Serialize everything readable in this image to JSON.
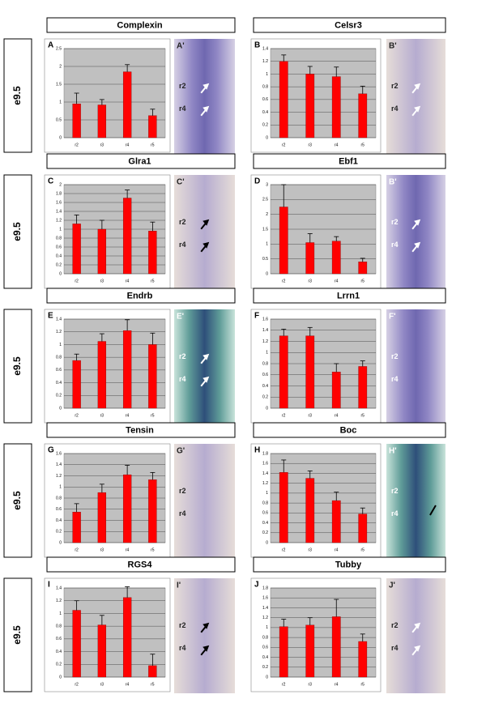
{
  "chart_data": [
    {
      "type": "bar",
      "title": "Complexin",
      "panel": "A",
      "categories": [
        "r2",
        "r3",
        "r4",
        "r5"
      ],
      "values": [
        0.95,
        0.92,
        1.85,
        0.62
      ],
      "errors": [
        0.3,
        0.15,
        0.2,
        0.18
      ],
      "color": "#ff0000",
      "ylim": [
        0,
        2.5
      ],
      "yticks": [
        0,
        0.5,
        1,
        1.5,
        2,
        2.5
      ],
      "grid": true
    },
    {
      "type": "bar",
      "title": "Celsr3",
      "panel": "B",
      "categories": [
        "r2",
        "r3",
        "r4",
        "r5"
      ],
      "values": [
        1.2,
        1.0,
        0.96,
        0.69
      ],
      "errors": [
        0.1,
        0.12,
        0.15,
        0.12
      ],
      "color": "#ff0000",
      "ylim": [
        0,
        1.4
      ],
      "yticks": [
        0,
        0.2,
        0.4,
        0.6,
        0.8,
        1,
        1.2,
        1.4
      ],
      "grid": true
    },
    {
      "type": "bar",
      "title": "Glra1",
      "panel": "C",
      "categories": [
        "r2",
        "r3",
        "r4",
        "r5"
      ],
      "values": [
        1.12,
        1.0,
        1.7,
        0.96
      ],
      "errors": [
        0.2,
        0.2,
        0.18,
        0.2
      ],
      "color": "#ff0000",
      "ylim": [
        0,
        2
      ],
      "yticks": [
        0,
        0.2,
        0.4,
        0.6,
        0.8,
        1,
        1.2,
        1.4,
        1.6,
        1.8,
        2
      ],
      "grid": true
    },
    {
      "type": "bar",
      "title": "Ebf1",
      "panel": "D",
      "categories": [
        "r2",
        "r3",
        "r4",
        "r5"
      ],
      "values": [
        2.25,
        1.05,
        1.1,
        0.4
      ],
      "errors": [
        0.75,
        0.3,
        0.15,
        0.12
      ],
      "color": "#ff0000",
      "ylim": [
        0,
        3
      ],
      "yticks": [
        0,
        0.5,
        1,
        1.5,
        2,
        2.5,
        3
      ],
      "grid": true
    },
    {
      "type": "bar",
      "title": "Endrb",
      "panel": "E",
      "categories": [
        "r2",
        "r3",
        "r4",
        "r5"
      ],
      "values": [
        0.75,
        1.05,
        1.22,
        1.0
      ],
      "errors": [
        0.1,
        0.12,
        0.17,
        0.18
      ],
      "color": "#ff0000",
      "ylim": [
        0,
        1.4
      ],
      "yticks": [
        0,
        0.2,
        0.4,
        0.6,
        0.8,
        1,
        1.2,
        1.4
      ],
      "grid": true
    },
    {
      "type": "bar",
      "title": "Lrrn1",
      "panel": "F",
      "categories": [
        "r2",
        "r3",
        "r4",
        "r5"
      ],
      "values": [
        1.3,
        1.3,
        0.65,
        0.75
      ],
      "errors": [
        0.12,
        0.15,
        0.15,
        0.1
      ],
      "color": "#ff0000",
      "ylim": [
        0,
        1.6
      ],
      "yticks": [
        0,
        0.2,
        0.4,
        0.6,
        0.8,
        1,
        1.2,
        1.4,
        1.6
      ],
      "grid": true
    },
    {
      "type": "bar",
      "title": "Tensin",
      "panel": "G",
      "categories": [
        "r2",
        "r3",
        "r4",
        "r5"
      ],
      "values": [
        0.55,
        0.9,
        1.22,
        1.13
      ],
      "errors": [
        0.15,
        0.15,
        0.17,
        0.13
      ],
      "color": "#ff0000",
      "ylim": [
        0,
        1.6
      ],
      "yticks": [
        0,
        0.2,
        0.4,
        0.6,
        0.8,
        1,
        1.2,
        1.4,
        1.6
      ],
      "grid": true
    },
    {
      "type": "bar",
      "title": "Boc",
      "panel": "H",
      "categories": [
        "r2",
        "r3",
        "r4",
        "r5"
      ],
      "values": [
        1.42,
        1.3,
        0.85,
        0.58
      ],
      "errors": [
        0.25,
        0.15,
        0.17,
        0.12
      ],
      "color": "#ff0000",
      "ylim": [
        0,
        1.8
      ],
      "yticks": [
        0,
        0.2,
        0.4,
        0.6,
        0.8,
        1,
        1.2,
        1.4,
        1.6,
        1.8
      ],
      "grid": true
    },
    {
      "type": "bar",
      "title": "RGS4",
      "panel": "I",
      "categories": [
        "r2",
        "r3",
        "r4",
        "r5"
      ],
      "values": [
        1.05,
        0.82,
        1.25,
        0.18
      ],
      "errors": [
        0.15,
        0.15,
        0.17,
        0.18
      ],
      "color": "#ff0000",
      "ylim": [
        0,
        1.4
      ],
      "yticks": [
        0,
        0.2,
        0.4,
        0.6,
        0.8,
        1,
        1.2,
        1.4
      ],
      "grid": true
    },
    {
      "type": "bar",
      "title": "Tubby",
      "panel": "J",
      "categories": [
        "r2",
        "r3",
        "r4",
        "r5"
      ],
      "values": [
        1.02,
        1.05,
        1.22,
        0.72
      ],
      "errors": [
        0.15,
        0.15,
        0.35,
        0.15
      ],
      "color": "#ff0000",
      "ylim": [
        0,
        1.8
      ],
      "yticks": [
        0,
        0.2,
        0.4,
        0.6,
        0.8,
        1,
        1.2,
        1.4,
        1.6,
        1.8
      ],
      "grid": true
    }
  ],
  "stage_labels": [
    "e9.5",
    "e9.5",
    "e9.5",
    "e9.5",
    "e9.5"
  ],
  "photos": [
    {
      "panel": "A'",
      "labels": [
        "r2",
        "r4"
      ]
    },
    {
      "panel": "B'",
      "labels": [
        "r2",
        "r4"
      ]
    },
    {
      "panel": "C'",
      "labels": [
        "r2",
        "r4"
      ]
    },
    {
      "panel": "B'",
      "labels": [
        "r2",
        "r4"
      ]
    },
    {
      "panel": "E'",
      "labels": [
        "r2",
        "r4"
      ]
    },
    {
      "panel": "F'",
      "labels": [
        "r2",
        "r4"
      ]
    },
    {
      "panel": "G'",
      "labels": [
        "r2",
        "r4"
      ]
    },
    {
      "panel": "H'",
      "labels": [
        "r2",
        "r4"
      ]
    },
    {
      "panel": "I'",
      "labels": [
        "r2",
        "r4"
      ]
    },
    {
      "panel": "J'",
      "labels": [
        "r2",
        "r4"
      ]
    }
  ]
}
